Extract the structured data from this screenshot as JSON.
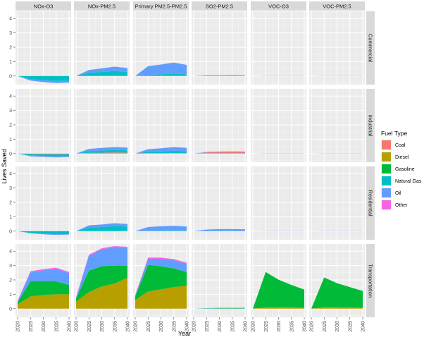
{
  "chart_data": {
    "type": "area",
    "stacked": true,
    "facet_columns": [
      "NOx-O3",
      "NOx-PM2.5",
      "Primary PM2.5-PM2.5",
      "SO2-PM2.5",
      "VOC-O3",
      "VOC-PM2.5"
    ],
    "facet_rows": [
      "Commercial",
      "Industrial",
      "Residential",
      "Transportation"
    ],
    "x": [
      2020,
      2025,
      2030,
      2035,
      2040
    ],
    "x_ticks": [
      "2020",
      "2025",
      "2030",
      "2035",
      "2040"
    ],
    "y_ticks": [
      "0",
      "1",
      "2",
      "3",
      "4"
    ],
    "ylim": [
      -0.6,
      4.5
    ],
    "xlabel": "Year",
    "ylabel": "Lives Saved",
    "legend": {
      "title": "Fuel Type",
      "position": "right",
      "entries": [
        {
          "name": "Coal",
          "color": "#F8766D"
        },
        {
          "name": "Diesel",
          "color": "#B79F00"
        },
        {
          "name": "Gasoline",
          "color": "#00BA38"
        },
        {
          "name": "Natural Gas",
          "color": "#00BFC4"
        },
        {
          "name": "Oil",
          "color": "#619CFF"
        },
        {
          "name": "Other",
          "color": "#F564E3"
        }
      ]
    },
    "stack_order": [
      "Coal",
      "Diesel",
      "Gasoline",
      "Natural Gas",
      "Oil",
      "Other"
    ],
    "panels": [
      {
        "row": "Commercial",
        "col": "NOx-O3",
        "series": [
          {
            "name": "Oil",
            "values": [
              0,
              -0.1,
              -0.12,
              -0.14,
              -0.13
            ]
          },
          {
            "name": "Natural Gas",
            "values": [
              0,
              -0.22,
              -0.3,
              -0.35,
              -0.33
            ]
          }
        ]
      },
      {
        "row": "Commercial",
        "col": "NOx-PM2.5",
        "series": [
          {
            "name": "Oil",
            "values": [
              0,
              0.2,
              0.25,
              0.3,
              0.27
            ]
          },
          {
            "name": "Natural Gas",
            "values": [
              0,
              0.22,
              0.28,
              0.35,
              0.28
            ]
          }
        ]
      },
      {
        "row": "Commercial",
        "col": "Primary PM2.5-PM2.5",
        "series": [
          {
            "name": "Oil",
            "values": [
              0,
              0.6,
              0.68,
              0.75,
              0.65
            ]
          },
          {
            "name": "Natural Gas",
            "values": [
              0,
              0.08,
              0.12,
              0.18,
              0.12
            ]
          }
        ]
      },
      {
        "row": "Commercial",
        "col": "SO2-PM2.5",
        "series": [
          {
            "name": "Oil",
            "values": [
              0,
              0.05,
              0.05,
              0.06,
              0.05
            ]
          }
        ]
      },
      {
        "row": "Commercial",
        "col": "VOC-O3",
        "series": [
          {
            "name": "Oil",
            "values": [
              0,
              0.01,
              0.01,
              0.01,
              0.01
            ]
          }
        ]
      },
      {
        "row": "Commercial",
        "col": "VOC-PM2.5",
        "series": [
          {
            "name": "Oil",
            "values": [
              0,
              0.01,
              0.01,
              0.01,
              0.01
            ]
          }
        ]
      },
      {
        "row": "Industrial",
        "col": "NOx-O3",
        "series": [
          {
            "name": "Coal",
            "values": [
              0,
              -0.04,
              -0.05,
              -0.06,
              -0.05
            ]
          },
          {
            "name": "Natural Gas",
            "values": [
              0,
              -0.1,
              -0.12,
              -0.14,
              -0.13
            ]
          },
          {
            "name": "Oil",
            "values": [
              0,
              -0.05,
              -0.06,
              -0.07,
              -0.06
            ]
          }
        ]
      },
      {
        "row": "Industrial",
        "col": "NOx-PM2.5",
        "series": [
          {
            "name": "Coal",
            "values": [
              0,
              0.05,
              0.06,
              0.08,
              0.06
            ]
          },
          {
            "name": "Natural Gas",
            "values": [
              0,
              0.12,
              0.15,
              0.17,
              0.16
            ]
          },
          {
            "name": "Oil",
            "values": [
              0,
              0.15,
              0.18,
              0.2,
              0.2
            ]
          }
        ]
      },
      {
        "row": "Industrial",
        "col": "Primary PM2.5-PM2.5",
        "series": [
          {
            "name": "Coal",
            "values": [
              0,
              0.02,
              0.02,
              0.03,
              0.02
            ]
          },
          {
            "name": "Natural Gas",
            "values": [
              0,
              0.1,
              0.13,
              0.17,
              0.14
            ]
          },
          {
            "name": "Oil",
            "values": [
              0,
              0.18,
              0.22,
              0.25,
              0.24
            ]
          }
        ]
      },
      {
        "row": "Industrial",
        "col": "SO2-PM2.5",
        "series": [
          {
            "name": "Coal",
            "values": [
              0,
              0.08,
              0.1,
              0.11,
              0.1
            ]
          },
          {
            "name": "Oil",
            "values": [
              0,
              0.03,
              0.04,
              0.04,
              0.04
            ]
          }
        ]
      },
      {
        "row": "Industrial",
        "col": "VOC-O3",
        "series": [
          {
            "name": "Oil",
            "values": [
              0,
              0.01,
              0.01,
              0.01,
              0.01
            ]
          }
        ]
      },
      {
        "row": "Industrial",
        "col": "VOC-PM2.5",
        "series": [
          {
            "name": "Oil",
            "values": [
              0,
              0.01,
              0.01,
              0.01,
              0.01
            ]
          }
        ]
      },
      {
        "row": "Residential",
        "col": "NOx-O3",
        "series": [
          {
            "name": "Oil",
            "values": [
              0,
              -0.03,
              -0.04,
              -0.05,
              -0.04
            ]
          },
          {
            "name": "Natural Gas",
            "values": [
              0,
              -0.12,
              -0.18,
              -0.22,
              -0.2
            ]
          }
        ]
      },
      {
        "row": "Residential",
        "col": "NOx-PM2.5",
        "series": [
          {
            "name": "Oil",
            "values": [
              0,
              0.15,
              0.18,
              0.2,
              0.18
            ]
          },
          {
            "name": "Natural Gas",
            "values": [
              0,
              0.25,
              0.28,
              0.35,
              0.32
            ]
          }
        ]
      },
      {
        "row": "Residential",
        "col": "Primary PM2.5-PM2.5",
        "series": [
          {
            "name": "Oil",
            "values": [
              0,
              0.25,
              0.3,
              0.32,
              0.28
            ]
          },
          {
            "name": "Natural Gas",
            "values": [
              0,
              0.03,
              0.04,
              0.05,
              0.04
            ]
          }
        ]
      },
      {
        "row": "Residential",
        "col": "SO2-PM2.5",
        "series": [
          {
            "name": "Oil",
            "values": [
              0,
              0.1,
              0.12,
              0.12,
              0.11
            ]
          },
          {
            "name": "Natural Gas",
            "values": [
              0,
              0.01,
              0.02,
              0.02,
              0.02
            ]
          }
        ]
      },
      {
        "row": "Residential",
        "col": "VOC-O3",
        "series": [
          {
            "name": "Oil",
            "values": [
              0,
              0.01,
              0.01,
              0.01,
              0.01
            ]
          }
        ]
      },
      {
        "row": "Residential",
        "col": "VOC-PM2.5",
        "series": [
          {
            "name": "Oil",
            "values": [
              0,
              0.01,
              0.01,
              0.01,
              0.01
            ]
          }
        ]
      },
      {
        "row": "Transportation",
        "col": "NOx-O3",
        "series": [
          {
            "name": "Diesel",
            "values": [
              0.3,
              0.85,
              0.95,
              1.0,
              1.0
            ]
          },
          {
            "name": "Gasoline",
            "values": [
              0.15,
              1.05,
              0.95,
              0.9,
              0.65
            ]
          },
          {
            "name": "Natural Gas",
            "values": [
              0,
              0.02,
              0.02,
              0.02,
              0.02
            ]
          },
          {
            "name": "Oil",
            "values": [
              0.05,
              0.6,
              0.75,
              0.85,
              0.8
            ]
          },
          {
            "name": "Other",
            "values": [
              0.05,
              0.08,
              0.08,
              0.08,
              0.08
            ]
          }
        ]
      },
      {
        "row": "Transportation",
        "col": "NOx-PM2.5",
        "series": [
          {
            "name": "Diesel",
            "values": [
              0.5,
              1.15,
              1.55,
              1.75,
              2.15
            ]
          },
          {
            "name": "Gasoline",
            "values": [
              0.2,
              1.5,
              1.4,
              1.25,
              0.85
            ]
          },
          {
            "name": "Natural Gas",
            "values": [
              0,
              0.02,
              0.02,
              0.02,
              0.02
            ]
          },
          {
            "name": "Oil",
            "values": [
              0.05,
              1.0,
              1.15,
              1.25,
              1.2
            ]
          },
          {
            "name": "Other",
            "values": [
              0.05,
              0.08,
              0.08,
              0.08,
              0.08
            ]
          }
        ]
      },
      {
        "row": "Transportation",
        "col": "Primary PM2.5-PM2.5",
        "series": [
          {
            "name": "Diesel",
            "values": [
              0.6,
              1.2,
              1.35,
              1.5,
              1.6
            ]
          },
          {
            "name": "Gasoline",
            "values": [
              0.25,
              1.85,
              1.6,
              1.3,
              0.95
            ]
          },
          {
            "name": "Natural Gas",
            "values": [
              0,
              0.02,
              0.02,
              0.02,
              0.02
            ]
          },
          {
            "name": "Oil",
            "values": [
              0.05,
              0.4,
              0.5,
              0.55,
              0.55
            ]
          },
          {
            "name": "Other",
            "values": [
              0.05,
              0.08,
              0.08,
              0.08,
              0.08
            ]
          }
        ]
      },
      {
        "row": "Transportation",
        "col": "SO2-PM2.5",
        "series": [
          {
            "name": "Gasoline",
            "values": [
              0,
              0.02,
              0.03,
              0.03,
              0.03
            ]
          },
          {
            "name": "Oil",
            "values": [
              0,
              0.02,
              0.03,
              0.03,
              0.03
            ]
          }
        ]
      },
      {
        "row": "Transportation",
        "col": "VOC-O3",
        "series": [
          {
            "name": "Diesel",
            "values": [
              0,
              0.1,
              0.12,
              0.1,
              0.08
            ]
          },
          {
            "name": "Gasoline",
            "values": [
              0,
              2.45,
              1.9,
              1.55,
              1.25
            ]
          }
        ]
      },
      {
        "row": "Transportation",
        "col": "VOC-PM2.5",
        "series": [
          {
            "name": "Diesel",
            "values": [
              0,
              0.12,
              0.12,
              0.1,
              0.08
            ]
          },
          {
            "name": "Gasoline",
            "values": [
              0,
              2.05,
              1.65,
              1.4,
              1.15
            ]
          }
        ]
      }
    ]
  }
}
